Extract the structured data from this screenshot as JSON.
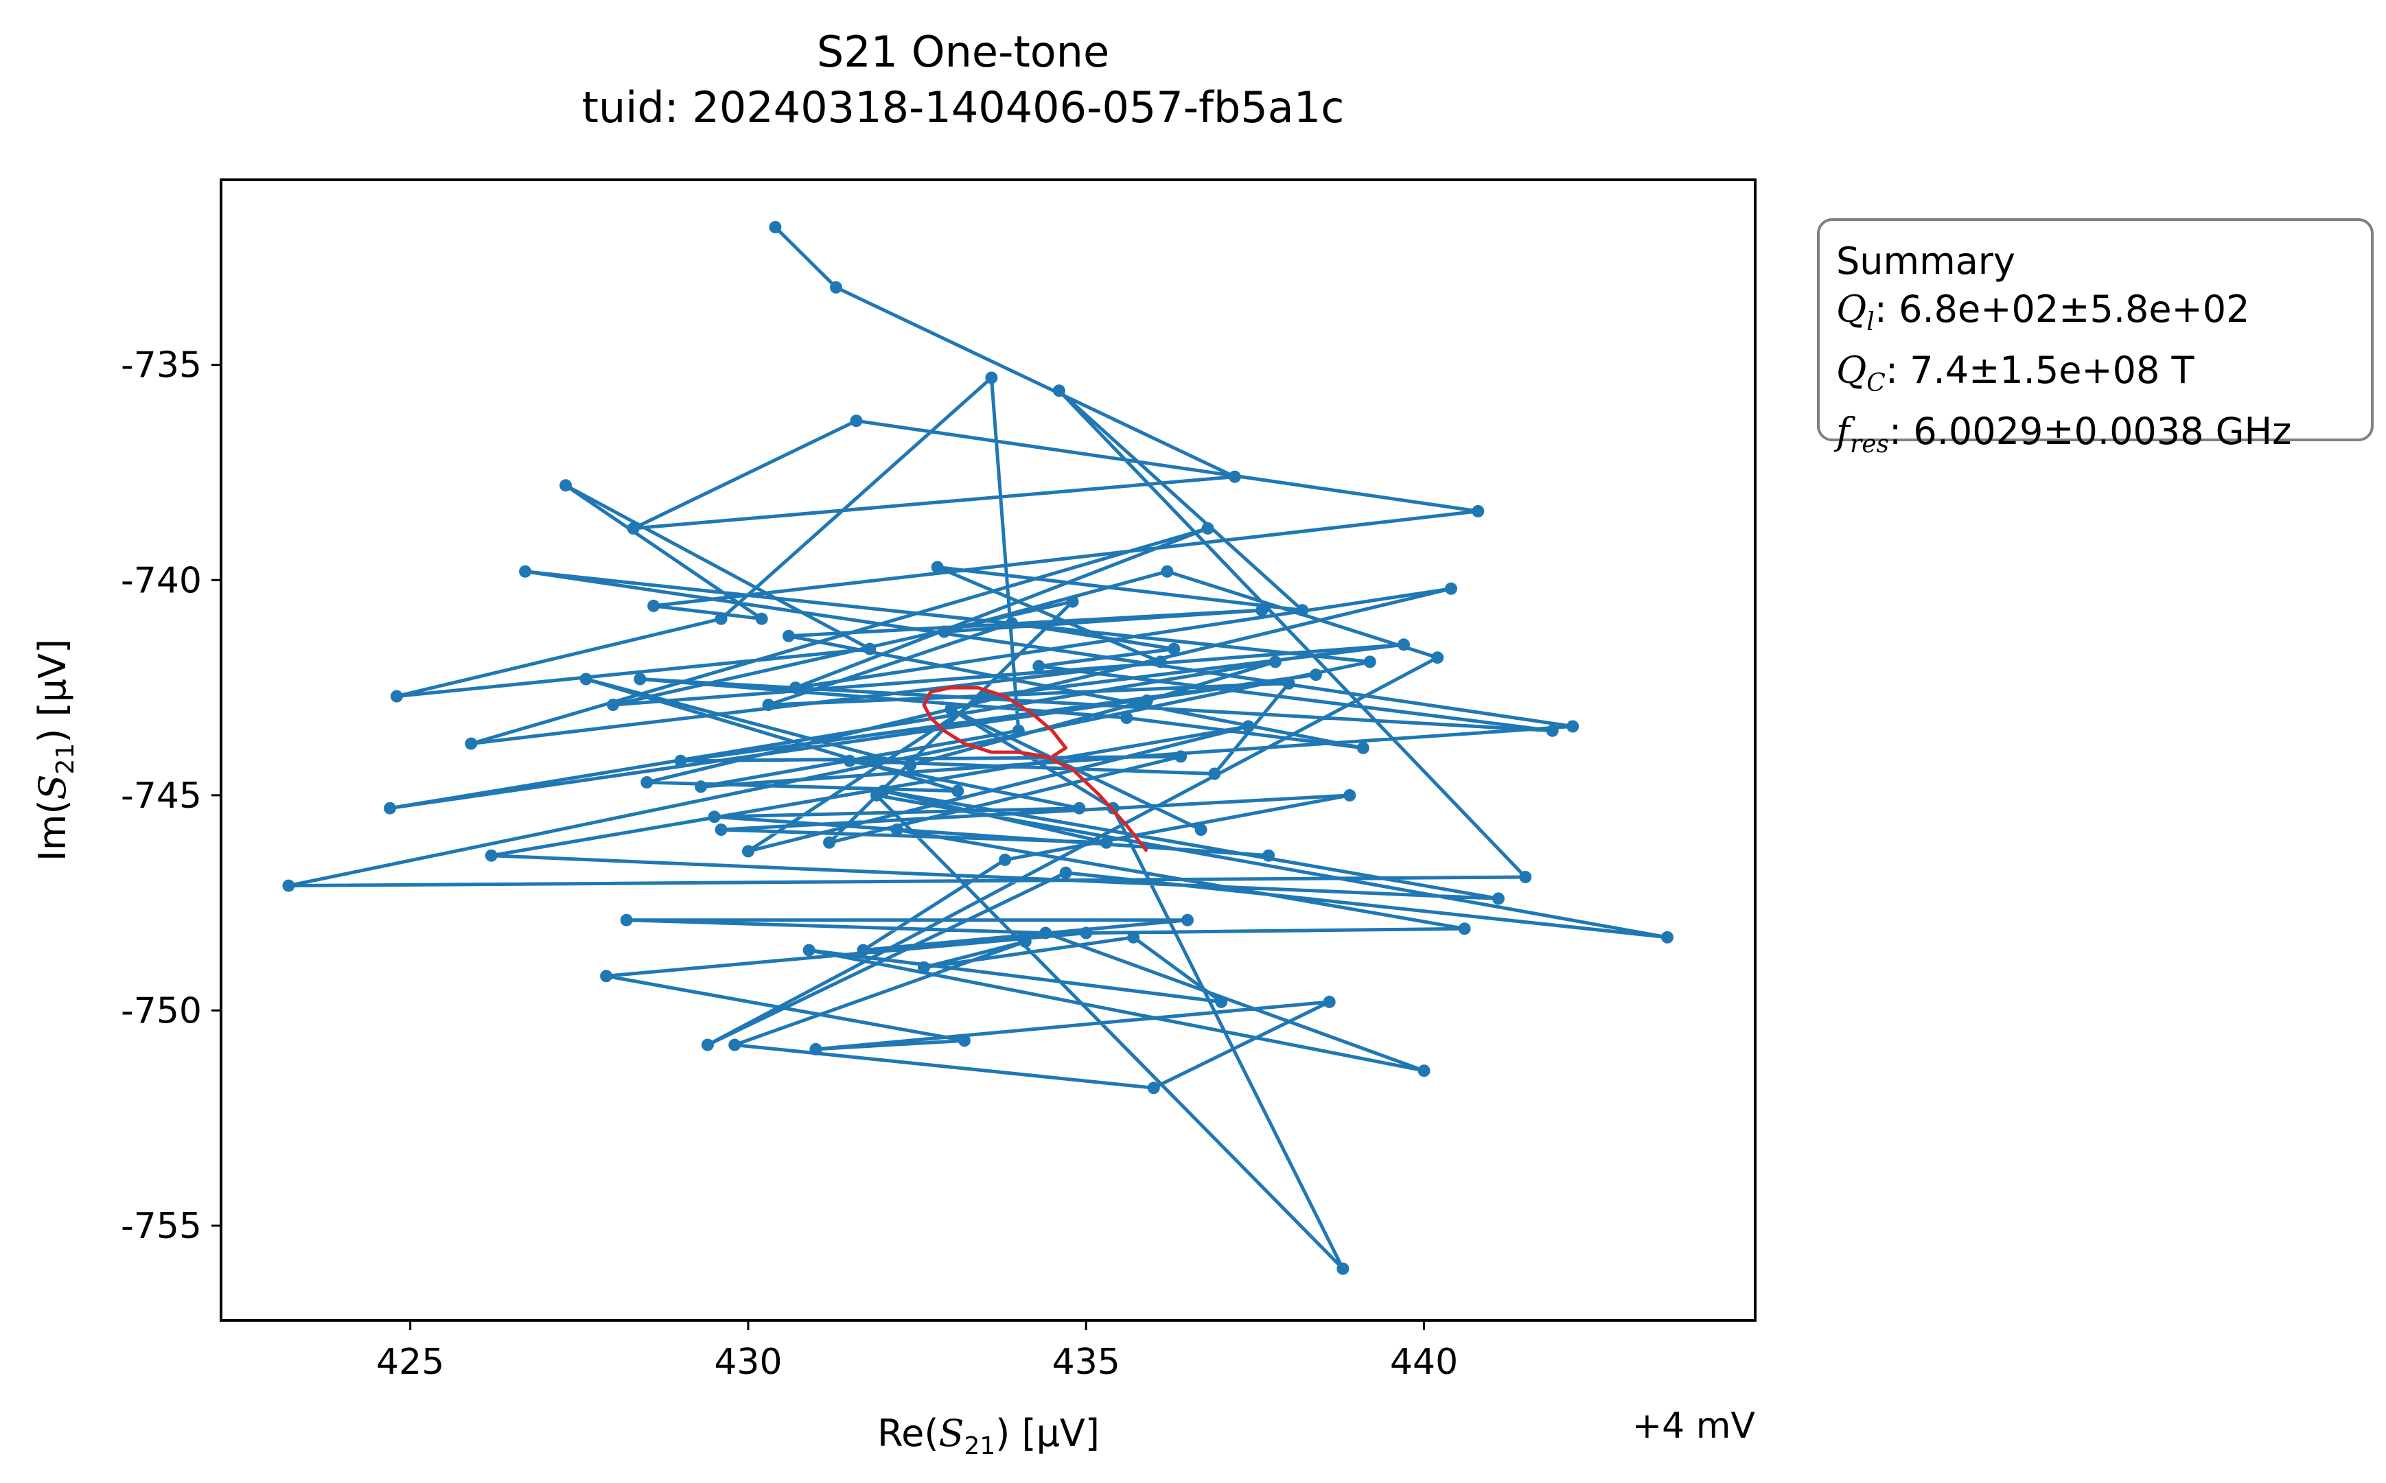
{
  "chart_data": {
    "type": "scatter",
    "title": "S21 One-tone",
    "subtitle": "tuid: 20240318-140406-057-fb5a1c",
    "xlabel": {
      "prefix": "Re(",
      "symbol": "S",
      "subscript": "21",
      "suffix": ") [μV]"
    },
    "ylabel": {
      "prefix": "Im(",
      "symbol": "S",
      "subscript": "21",
      "suffix": ") [μV]"
    },
    "x_offset_text": "+4 mV",
    "xlim": [
      422.2,
      444.9
    ],
    "ylim": [
      -757.2,
      -730.7
    ],
    "xticks": [
      425,
      430,
      435,
      440
    ],
    "xtick_labels": [
      "425",
      "430",
      "435",
      "440"
    ],
    "yticks": [
      -735,
      -740,
      -745,
      -750,
      -755
    ],
    "ytick_labels": [
      "-735",
      "-740",
      "-745",
      "-750",
      "-755"
    ],
    "grid": false,
    "series": [
      {
        "color": "#1f77b4",
        "marker": "circle",
        "style": "line-with-markers",
        "x": [
          430.4,
          431.3,
          437.2,
          428.3,
          431.6,
          440.8,
          428.6,
          430.2,
          427.3,
          431.8,
          424.8,
          429.6,
          433.6,
          434.0,
          429.3,
          442.2,
          426.7,
          439.2,
          423.2,
          441.5,
          434.6,
          438.2,
          432.8,
          436.1,
          425.9,
          436.8,
          430.7,
          440.4,
          428.5,
          433.1,
          427.6,
          432.4,
          435.9,
          437.8,
          424.7,
          438.4,
          429.0,
          436.4,
          431.2,
          434.8,
          428.0,
          439.7,
          433.5,
          430.0,
          437.4,
          426.2,
          441.1,
          432.0,
          435.3,
          429.6,
          438.9,
          433.8,
          431.7,
          436.5,
          428.2,
          434.4,
          440.0,
          430.9,
          437.0,
          435.7,
          432.6,
          434.1,
          429.8,
          436.0,
          438.6,
          431.0,
          433.2,
          427.9,
          435.0,
          440.6,
          432.2,
          437.7,
          429.5,
          434.9,
          431.5,
          436.9,
          438.0,
          430.3,
          433.9,
          436.3,
          434.3,
          441.9,
          428.4,
          435.6,
          439.1,
          430.6,
          437.6,
          432.9,
          436.2,
          440.2,
          429.4,
          434.7,
          443.6,
          431.9,
          438.8,
          435.4,
          433.0,
          436.7
        ],
        "y": [
          -731.8,
          -733.2,
          -737.6,
          -738.8,
          -736.3,
          -738.4,
          -740.6,
          -740.9,
          -737.8,
          -741.6,
          -742.7,
          -740.9,
          -735.3,
          -743.5,
          -744.8,
          -743.4,
          -739.8,
          -741.9,
          -747.1,
          -746.9,
          -735.6,
          -740.7,
          -739.7,
          -741.9,
          -743.8,
          -738.8,
          -742.5,
          -740.2,
          -744.7,
          -744.9,
          -742.3,
          -744.3,
          -742.8,
          -741.9,
          -745.3,
          -742.2,
          -744.2,
          -744.1,
          -746.1,
          -740.5,
          -742.9,
          -741.5,
          -742.7,
          -746.3,
          -743.4,
          -746.4,
          -747.4,
          -744.9,
          -746.1,
          -745.8,
          -745.0,
          -746.5,
          -748.6,
          -747.9,
          -747.9,
          -748.2,
          -751.4,
          -748.6,
          -749.8,
          -748.3,
          -749.0,
          -748.4,
          -750.8,
          -751.8,
          -749.8,
          -750.9,
          -750.7,
          -749.2,
          -748.2,
          -748.1,
          -745.8,
          -746.4,
          -745.5,
          -745.3,
          -744.2,
          -744.5,
          -742.4,
          -742.9,
          -741.0,
          -741.6,
          -742.0,
          -743.5,
          -742.3,
          -743.2,
          -743.9,
          -741.3,
          -740.7,
          -741.2,
          -739.8,
          -741.8,
          -750.8,
          -746.8,
          -748.3,
          -745.0,
          -756.0,
          -745.3,
          -743.0,
          -745.8
        ]
      },
      {
        "color": "#d62728",
        "style": "line",
        "x": [
          435.9,
          435.6,
          435.2,
          434.8,
          434.4,
          434.0,
          433.6,
          433.2,
          432.9,
          432.7,
          432.6,
          432.7,
          433.0,
          433.4,
          433.8,
          434.2,
          434.5,
          434.7,
          434.5
        ],
        "y": [
          -746.3,
          -745.7,
          -745.0,
          -744.4,
          -744.1,
          -744.0,
          -744.0,
          -743.8,
          -743.5,
          -743.2,
          -742.9,
          -742.6,
          -742.5,
          -742.5,
          -742.7,
          -743.1,
          -743.5,
          -743.9,
          -744.1
        ]
      }
    ]
  },
  "summary": {
    "heading": "Summary",
    "ql": {
      "symbol": "Q",
      "sub": "l",
      "value": ": 6.8e+02±5.8e+02"
    },
    "qc": {
      "symbol": "Q",
      "sub": "C",
      "value": ": 7.4±1.5e+08 T"
    },
    "fres": {
      "symbol": "f",
      "sub": "res",
      "value": ": 6.0029±0.0038 GHz"
    }
  }
}
